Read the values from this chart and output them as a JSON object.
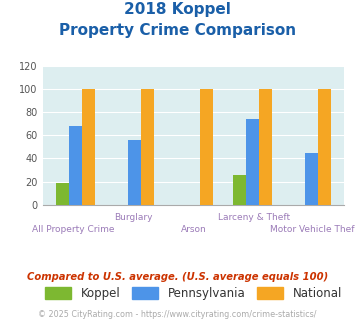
{
  "title_line1": "2018 Koppel",
  "title_line2": "Property Crime Comparison",
  "categories": [
    "All Property Crime",
    "Burglary",
    "Arson",
    "Larceny & Theft",
    "Motor Vehicle Theft"
  ],
  "koppel": [
    19,
    0,
    0,
    26,
    0
  ],
  "pennsylvania": [
    68,
    56,
    0,
    74,
    45
  ],
  "national": [
    100,
    100,
    100,
    100,
    100
  ],
  "koppel_color": "#7db831",
  "pennsylvania_color": "#4d94e8",
  "national_color": "#f5a623",
  "bg_color": "#ddeef0",
  "ylim": [
    0,
    120
  ],
  "yticks": [
    0,
    20,
    40,
    60,
    80,
    100,
    120
  ],
  "upper_labels": [
    "",
    "Burglary",
    "",
    "Larceny & Theft",
    ""
  ],
  "lower_labels": [
    "All Property Crime",
    "",
    "Arson",
    "",
    "Motor Vehicle Theft"
  ],
  "xlabel_color": "#9b7bb8",
  "title_color": "#1a5fa8",
  "legend_labels": [
    "Koppel",
    "Pennsylvania",
    "National"
  ],
  "footnote1": "Compared to U.S. average. (U.S. average equals 100)",
  "footnote2": "© 2025 CityRating.com - https://www.cityrating.com/crime-statistics/",
  "footnote1_color": "#cc3300",
  "footnote2_color": "#aaaaaa"
}
